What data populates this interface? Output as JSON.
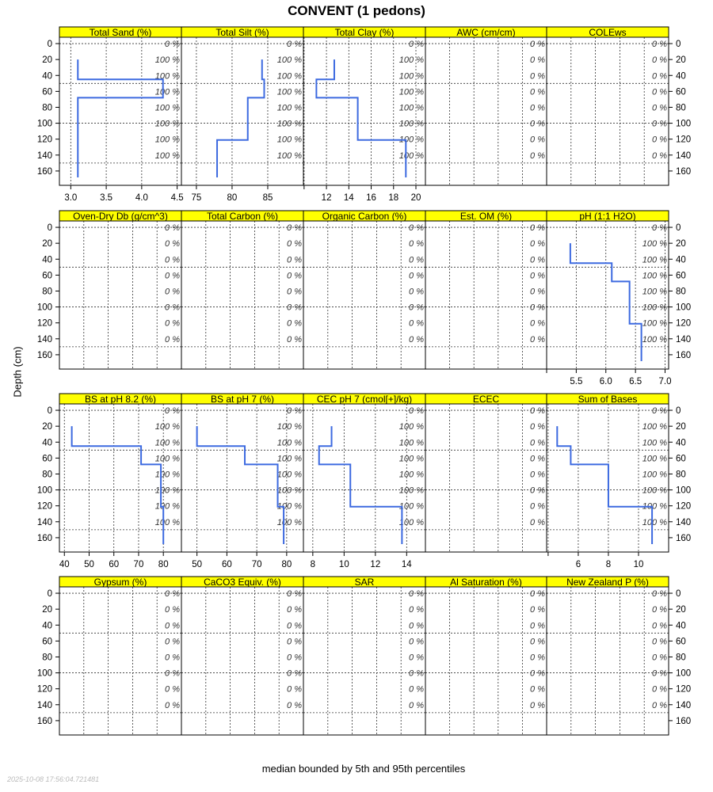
{
  "title": "CONVENT (1 pedons)",
  "ylabel": "Depth (cm)",
  "footer": "median bounded by 5th and 95th percentiles",
  "timestamp": "2025-10-08 17:56:04.721481",
  "colors": {
    "strip": "#ffff00",
    "line": "#3d6ae0"
  },
  "chart_data": {
    "type": "line",
    "ylim": [
      -8,
      178
    ],
    "y_ticks": [
      0,
      20,
      40,
      60,
      80,
      100,
      120,
      140,
      160
    ],
    "y_grid": [
      0,
      50,
      100,
      150
    ],
    "pct_depths": [
      0,
      20,
      40,
      60,
      80,
      100,
      120,
      140
    ],
    "horizons": [
      [
        20,
        45
      ],
      [
        45,
        68
      ],
      [
        68,
        121
      ],
      [
        121,
        168
      ]
    ],
    "panels": [
      {
        "title": "Total Sand (%)",
        "xlim": [
          2.84,
          4.56
        ],
        "ticks": [
          3.0,
          3.5,
          4.0,
          4.5
        ],
        "tick_labels": [
          "3.0",
          "3.5",
          "4.0",
          "4.5"
        ],
        "values": [
          3.1,
          4.3,
          3.1,
          3.1
        ],
        "pct": [
          "0 %",
          "100 %",
          "100 %",
          "100 %",
          "100 %",
          "100 %",
          "100 %",
          "100 %"
        ]
      },
      {
        "title": "Total Silt (%)",
        "xlim": [
          72.9,
          90.0
        ],
        "ticks": [
          75,
          80,
          85
        ],
        "tick_labels": [
          "75",
          "80",
          "85"
        ],
        "values": [
          84.2,
          84.5,
          82.2,
          77.9
        ],
        "pct": [
          "0 %",
          "100 %",
          "100 %",
          "100 %",
          "100 %",
          "100 %",
          "100 %",
          "100 %"
        ]
      },
      {
        "title": "Total Clay (%)",
        "xlim": [
          9.94,
          20.85
        ],
        "ticks": [
          10,
          12,
          14,
          16,
          18,
          20
        ],
        "tick_labels": [
          "",
          "12",
          "14",
          "16",
          "18",
          "20"
        ],
        "values": [
          12.7,
          11.1,
          14.8,
          19.1
        ],
        "pct": [
          "0 %",
          "100 %",
          "100 %",
          "100 %",
          "100 %",
          "100 %",
          "100 %",
          "100 %"
        ]
      },
      {
        "title": "AWC (cm/cm)",
        "pct": [
          "0 %",
          "0 %",
          "0 %",
          "0 %",
          "0 %",
          "0 %",
          "0 %",
          "0 %"
        ]
      },
      {
        "title": "COLEws",
        "pct": [
          "0 %",
          "0 %",
          "0 %",
          "0 %",
          "0 %",
          "0 %",
          "0 %",
          "0 %"
        ]
      },
      {
        "title": "Oven-Dry Db (g/cm^3)",
        "pct": [
          "0 %",
          "0 %",
          "0 %",
          "0 %",
          "0 %",
          "0 %",
          "0 %",
          "0 %"
        ]
      },
      {
        "title": "Total Carbon (%)",
        "pct": [
          "0 %",
          "0 %",
          "0 %",
          "0 %",
          "0 %",
          "0 %",
          "0 %",
          "0 %"
        ]
      },
      {
        "title": "Organic Carbon (%)",
        "pct": [
          "0 %",
          "0 %",
          "0 %",
          "0 %",
          "0 %",
          "0 %",
          "0 %",
          "0 %"
        ]
      },
      {
        "title": "Est. OM (%)",
        "pct": [
          "0 %",
          "0 %",
          "0 %",
          "0 %",
          "0 %",
          "0 %",
          "0 %",
          "0 %"
        ]
      },
      {
        "title": "pH (1:1 H2O)",
        "xlim": [
          5.0,
          7.06
        ],
        "ticks": [
          5.0,
          5.5,
          6.0,
          6.5,
          7.0
        ],
        "tick_labels": [
          "",
          "5.5",
          "6.0",
          "6.5",
          "7.0"
        ],
        "values": [
          5.4,
          6.1,
          6.4,
          6.6
        ],
        "pct": [
          "0 %",
          "100 %",
          "100 %",
          "100 %",
          "100 %",
          "100 %",
          "100 %",
          "100 %"
        ]
      },
      {
        "title": "BS at pH 8.2 (%)",
        "xlim": [
          38,
          87.3
        ],
        "ticks": [
          40,
          50,
          60,
          70,
          80
        ],
        "tick_labels": [
          "40",
          "50",
          "60",
          "70",
          "80"
        ],
        "values": [
          43,
          71,
          79,
          80
        ],
        "pct": [
          "0 %",
          "100 %",
          "100 %",
          "100 %",
          "100 %",
          "100 %",
          "100 %",
          "100 %"
        ]
      },
      {
        "title": "BS at pH 7 (%)",
        "xlim": [
          44.8,
          85.6
        ],
        "ticks": [
          50,
          60,
          70,
          80
        ],
        "tick_labels": [
          "50",
          "60",
          "70",
          "80"
        ],
        "values": [
          50,
          66,
          77,
          79
        ],
        "pct": [
          "0 %",
          "100 %",
          "100 %",
          "100 %",
          "100 %",
          "100 %",
          "100 %",
          "100 %"
        ]
      },
      {
        "title": "CEC pH 7 (cmol[+]/kg)",
        "xlim": [
          7.4,
          15.2
        ],
        "ticks": [
          8,
          10,
          12,
          14
        ],
        "tick_labels": [
          "8",
          "10",
          "12",
          "14"
        ],
        "values": [
          9.2,
          8.4,
          10.4,
          13.7
        ],
        "pct": [
          "0 %",
          "100 %",
          "100 %",
          "100 %",
          "100 %",
          "100 %",
          "100 %",
          "100 %"
        ]
      },
      {
        "title": "ECEC",
        "pct": [
          "0 %",
          "0 %",
          "0 %",
          "0 %",
          "0 %",
          "0 %",
          "0 %",
          "0 %"
        ]
      },
      {
        "title": "Sum of Bases",
        "xlim": [
          3.9,
          12.0
        ],
        "ticks": [
          4,
          6,
          8,
          10
        ],
        "tick_labels": [
          "",
          "6",
          "8",
          "10"
        ],
        "values": [
          4.6,
          5.5,
          8.0,
          10.9
        ],
        "pct": [
          "0 %",
          "100 %",
          "100 %",
          "100 %",
          "100 %",
          "100 %",
          "100 %",
          "100 %"
        ]
      },
      {
        "title": "Gypsum (%)",
        "pct": [
          "0 %",
          "0 %",
          "0 %",
          "0 %",
          "0 %",
          "0 %",
          "0 %",
          "0 %"
        ]
      },
      {
        "title": "CaCO3 Equiv. (%)",
        "pct": [
          "0 %",
          "0 %",
          "0 %",
          "0 %",
          "0 %",
          "0 %",
          "0 %",
          "0 %"
        ]
      },
      {
        "title": "SAR",
        "pct": [
          "0 %",
          "0 %",
          "0 %",
          "0 %",
          "0 %",
          "0 %",
          "0 %",
          "0 %"
        ]
      },
      {
        "title": "Al Saturation (%)",
        "pct": [
          "0 %",
          "0 %",
          "0 %",
          "0 %",
          "0 %",
          "0 %",
          "0 %",
          "0 %"
        ]
      },
      {
        "title": "New Zealand P (%)",
        "pct": [
          "0 %",
          "0 %",
          "0 %",
          "0 %",
          "0 %",
          "0 %",
          "0 %",
          "0 %"
        ]
      }
    ]
  }
}
